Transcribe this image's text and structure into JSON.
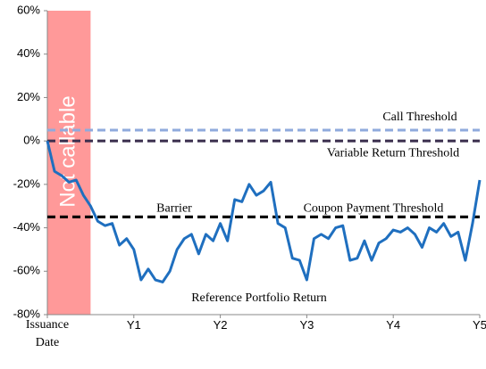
{
  "chart_data": {
    "type": "line",
    "x": [
      0,
      1,
      2,
      3,
      4,
      5,
      6,
      7,
      8,
      9,
      10,
      11,
      12,
      13,
      14,
      15,
      16,
      17,
      18,
      19,
      20,
      21,
      22,
      23,
      24,
      25,
      26,
      27,
      28,
      29,
      30,
      31,
      32,
      33,
      34,
      35,
      36,
      37,
      38,
      39,
      40,
      41,
      42,
      43,
      44,
      45,
      46,
      47,
      48,
      49,
      50,
      51,
      52,
      53,
      54,
      55,
      56,
      57,
      58,
      59,
      60
    ],
    "series": [
      {
        "name": "Reference Portfolio Return",
        "color": "#1f6fbf",
        "values": [
          0,
          -14,
          -16,
          -19,
          -18,
          -25,
          -30,
          -37,
          -39,
          -38,
          -48,
          -45,
          -50,
          -64,
          -59,
          -64,
          -65,
          -60,
          -50,
          -45,
          -43,
          -52,
          -43,
          -46,
          -38,
          -46,
          -27,
          -28,
          -20,
          -25,
          -23,
          -19,
          -38,
          -40,
          -54,
          -55,
          -64,
          -45,
          -43,
          -45,
          -40,
          -39,
          -55,
          -54,
          -46,
          -55,
          -47,
          -45,
          -41,
          -42,
          -40,
          -43,
          -49,
          -40,
          -42,
          -38,
          -44,
          -42,
          -55,
          -38,
          -18
        ]
      }
    ],
    "xlim": [
      0,
      60
    ],
    "xticks": [
      {
        "value": 0,
        "label": "Issuance Date"
      },
      {
        "value": 12,
        "label": "Y1"
      },
      {
        "value": 24,
        "label": "Y2"
      },
      {
        "value": 36,
        "label": "Y3"
      },
      {
        "value": 48,
        "label": "Y4"
      },
      {
        "value": 60,
        "label": "Y5"
      }
    ],
    "ylim": [
      -80,
      60
    ],
    "yticks": [
      {
        "value": -80,
        "label": "-80%"
      },
      {
        "value": -60,
        "label": "-60%"
      },
      {
        "value": -40,
        "label": "-40%"
      },
      {
        "value": -20,
        "label": "-20%"
      },
      {
        "value": 0,
        "label": "0%"
      },
      {
        "value": 20,
        "label": "20%"
      },
      {
        "value": 40,
        "label": "40%"
      },
      {
        "value": 60,
        "label": "60%"
      }
    ],
    "reference_lines": [
      {
        "label": "Call Threshold",
        "value": 5,
        "color": "#8faadc"
      },
      {
        "label": "Variable Return Threshold",
        "value": 0,
        "color": "#3a2e4d"
      },
      {
        "label": "Barrier",
        "value": -35,
        "color": "#000000"
      },
      {
        "label": "Coupon Payment Threshold",
        "value": -35,
        "color": "#000000"
      }
    ],
    "shaded_region": {
      "label": "Not callable",
      "x": [
        0,
        6
      ],
      "color": "#ff9999"
    }
  }
}
